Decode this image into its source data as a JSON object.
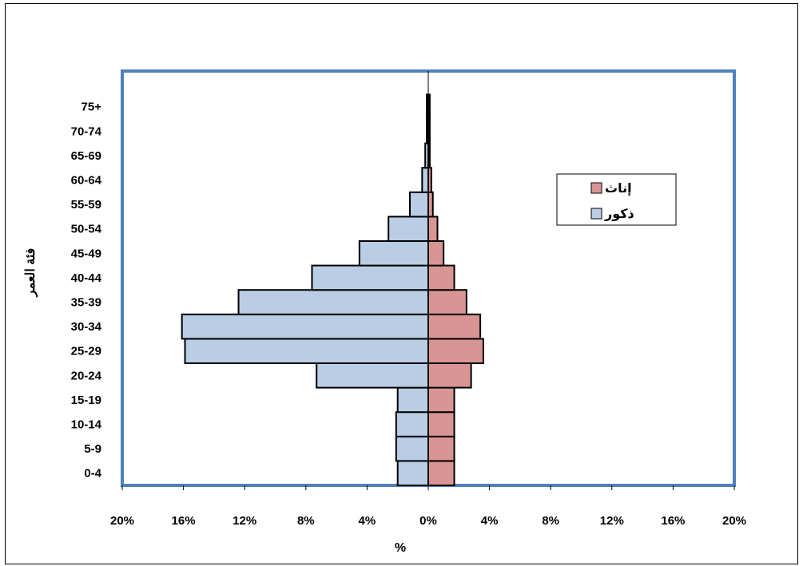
{
  "chart_data": {
    "type": "bar",
    "orientation": "horizontal",
    "subtype": "population-pyramid",
    "categories": [
      "0-4",
      "5-9",
      "10-14",
      "15-19",
      "20-24",
      "25-29",
      "30-34",
      "35-39",
      "40-44",
      "45-49",
      "50-54",
      "55-59",
      "60-64",
      "65-69",
      "70-74",
      "75+"
    ],
    "series": [
      {
        "name": "إناث",
        "side": "right",
        "color": "#d99594",
        "values": [
          1.7,
          1.7,
          1.7,
          1.7,
          2.8,
          3.6,
          3.4,
          2.5,
          1.7,
          1.0,
          0.6,
          0.3,
          0.2,
          0.1,
          0.1,
          0.1
        ]
      },
      {
        "name": "ذكور",
        "side": "left",
        "color": "#b9cde5",
        "values": [
          2.0,
          2.1,
          2.1,
          2.0,
          7.3,
          15.9,
          16.1,
          12.4,
          7.6,
          4.5,
          2.6,
          1.2,
          0.4,
          0.2,
          0.1,
          0.1
        ]
      }
    ],
    "xlim": [
      -20,
      20
    ],
    "x_ticks": [
      -20,
      -16,
      -12,
      -8,
      -4,
      0,
      4,
      8,
      12,
      16,
      20
    ],
    "x_tick_labels": [
      "20%",
      "16%",
      "12%",
      "8%",
      "4%",
      "0%",
      "4%",
      "8%",
      "12%",
      "16%",
      "20%"
    ],
    "xlabel": "%",
    "ylabel": "فئة العمر",
    "title": "",
    "grid": false,
    "legend": "right",
    "plot_border_color": "#4f81bd"
  }
}
